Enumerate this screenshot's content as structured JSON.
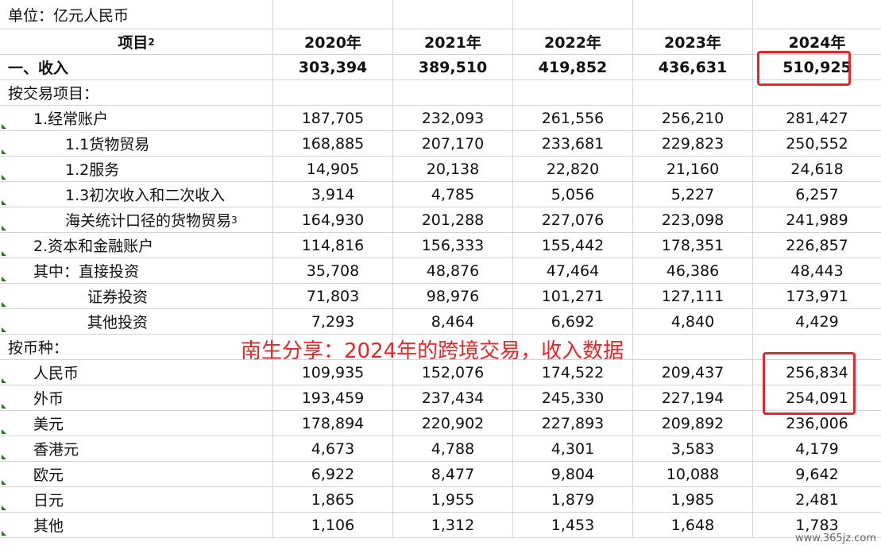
{
  "unit_label": "单位：亿元人民币",
  "header": {
    "item": "项目",
    "item_note": "2",
    "years": [
      "2020年",
      "2021年",
      "2022年",
      "2023年",
      "2024年"
    ]
  },
  "rows": [
    {
      "label": "一、收入",
      "values": [
        "303,394",
        "389,510",
        "419,852",
        "436,631",
        "510,925"
      ]
    },
    {
      "label": "按交易项目：",
      "values": [
        "",
        "",
        "",
        "",
        ""
      ]
    },
    {
      "label": "1.经常账户",
      "values": [
        "187,705",
        "232,093",
        "261,556",
        "256,210",
        "281,427"
      ]
    },
    {
      "label": "1.1货物贸易",
      "values": [
        "168,885",
        "207,170",
        "233,681",
        "229,823",
        "250,552"
      ]
    },
    {
      "label": "1.2服务",
      "values": [
        "14,905",
        "20,138",
        "22,820",
        "21,160",
        "24,618"
      ]
    },
    {
      "label": "1.3初次收入和二次收入",
      "values": [
        "3,914",
        "4,785",
        "5,056",
        "5,227",
        "6,257"
      ]
    },
    {
      "label": "海关统计口径的货物贸易",
      "note": "3",
      "values": [
        "164,930",
        "201,288",
        "227,076",
        "223,098",
        "241,989"
      ]
    },
    {
      "label": "2.资本和金融账户",
      "values": [
        "114,816",
        "156,333",
        "155,442",
        "178,351",
        "226,857"
      ]
    },
    {
      "label": "其中：直接投资",
      "values": [
        "35,708",
        "48,876",
        "47,464",
        "46,386",
        "48,443"
      ]
    },
    {
      "label": "证券投资",
      "values": [
        "71,803",
        "98,976",
        "101,271",
        "127,111",
        "173,971"
      ]
    },
    {
      "label": "其他投资",
      "values": [
        "7,293",
        "8,464",
        "6,692",
        "4,840",
        "4,429"
      ]
    },
    {
      "label": "按币种：",
      "values": [
        "",
        "",
        "",
        "",
        ""
      ]
    },
    {
      "label": "人民币",
      "values": [
        "109,935",
        "152,076",
        "174,522",
        "209,437",
        "256,834"
      ]
    },
    {
      "label": "外币",
      "values": [
        "193,459",
        "237,434",
        "245,330",
        "227,194",
        "254,091"
      ]
    },
    {
      "label": "美元",
      "values": [
        "178,894",
        "220,902",
        "227,893",
        "209,892",
        "236,006"
      ]
    },
    {
      "label": "香港元",
      "values": [
        "4,673",
        "4,788",
        "4,301",
        "3,583",
        "4,179"
      ]
    },
    {
      "label": "欧元",
      "values": [
        "6,922",
        "8,477",
        "9,804",
        "10,088",
        "9,642"
      ]
    },
    {
      "label": "日元",
      "values": [
        "1,865",
        "1,955",
        "1,879",
        "1,985",
        "2,481"
      ]
    },
    {
      "label": "其他",
      "values": [
        "1,106",
        "1,312",
        "1,453",
        "1,648",
        "1,783"
      ]
    }
  ],
  "overlay_caption": "南生分享：2024年的跨境交易，收入数据",
  "watermark": "www.365jz.com",
  "highlight_color": "#e8262a"
}
